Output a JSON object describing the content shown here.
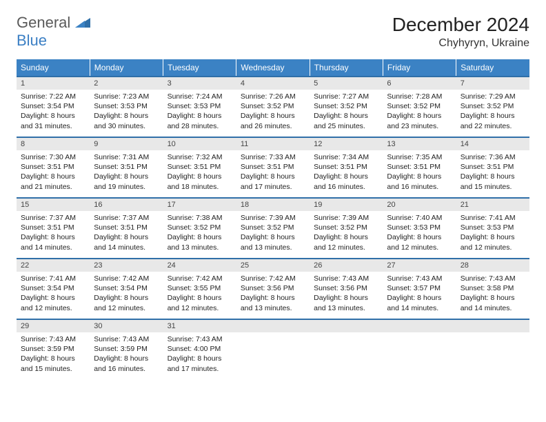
{
  "logo": {
    "general": "General",
    "blue": "Blue"
  },
  "title": "December 2024",
  "location": "Chyhyryn, Ukraine",
  "weekdays": [
    "Sunday",
    "Monday",
    "Tuesday",
    "Wednesday",
    "Thursday",
    "Friday",
    "Saturday"
  ],
  "colors": {
    "header_bg": "#3b82c4",
    "header_text": "#ffffff",
    "daynum_bg": "#e8e8e8",
    "row_divider": "#2f6fa8",
    "logo_gray": "#5a5a5a",
    "logo_blue": "#3b7fc4",
    "background": "#ffffff"
  },
  "days": [
    {
      "n": "1",
      "sunrise": "Sunrise: 7:22 AM",
      "sunset": "Sunset: 3:54 PM",
      "day": "Daylight: 8 hours and 31 minutes."
    },
    {
      "n": "2",
      "sunrise": "Sunrise: 7:23 AM",
      "sunset": "Sunset: 3:53 PM",
      "day": "Daylight: 8 hours and 30 minutes."
    },
    {
      "n": "3",
      "sunrise": "Sunrise: 7:24 AM",
      "sunset": "Sunset: 3:53 PM",
      "day": "Daylight: 8 hours and 28 minutes."
    },
    {
      "n": "4",
      "sunrise": "Sunrise: 7:26 AM",
      "sunset": "Sunset: 3:52 PM",
      "day": "Daylight: 8 hours and 26 minutes."
    },
    {
      "n": "5",
      "sunrise": "Sunrise: 7:27 AM",
      "sunset": "Sunset: 3:52 PM",
      "day": "Daylight: 8 hours and 25 minutes."
    },
    {
      "n": "6",
      "sunrise": "Sunrise: 7:28 AM",
      "sunset": "Sunset: 3:52 PM",
      "day": "Daylight: 8 hours and 23 minutes."
    },
    {
      "n": "7",
      "sunrise": "Sunrise: 7:29 AM",
      "sunset": "Sunset: 3:52 PM",
      "day": "Daylight: 8 hours and 22 minutes."
    },
    {
      "n": "8",
      "sunrise": "Sunrise: 7:30 AM",
      "sunset": "Sunset: 3:51 PM",
      "day": "Daylight: 8 hours and 21 minutes."
    },
    {
      "n": "9",
      "sunrise": "Sunrise: 7:31 AM",
      "sunset": "Sunset: 3:51 PM",
      "day": "Daylight: 8 hours and 19 minutes."
    },
    {
      "n": "10",
      "sunrise": "Sunrise: 7:32 AM",
      "sunset": "Sunset: 3:51 PM",
      "day": "Daylight: 8 hours and 18 minutes."
    },
    {
      "n": "11",
      "sunrise": "Sunrise: 7:33 AM",
      "sunset": "Sunset: 3:51 PM",
      "day": "Daylight: 8 hours and 17 minutes."
    },
    {
      "n": "12",
      "sunrise": "Sunrise: 7:34 AM",
      "sunset": "Sunset: 3:51 PM",
      "day": "Daylight: 8 hours and 16 minutes."
    },
    {
      "n": "13",
      "sunrise": "Sunrise: 7:35 AM",
      "sunset": "Sunset: 3:51 PM",
      "day": "Daylight: 8 hours and 16 minutes."
    },
    {
      "n": "14",
      "sunrise": "Sunrise: 7:36 AM",
      "sunset": "Sunset: 3:51 PM",
      "day": "Daylight: 8 hours and 15 minutes."
    },
    {
      "n": "15",
      "sunrise": "Sunrise: 7:37 AM",
      "sunset": "Sunset: 3:51 PM",
      "day": "Daylight: 8 hours and 14 minutes."
    },
    {
      "n": "16",
      "sunrise": "Sunrise: 7:37 AM",
      "sunset": "Sunset: 3:51 PM",
      "day": "Daylight: 8 hours and 14 minutes."
    },
    {
      "n": "17",
      "sunrise": "Sunrise: 7:38 AM",
      "sunset": "Sunset: 3:52 PM",
      "day": "Daylight: 8 hours and 13 minutes."
    },
    {
      "n": "18",
      "sunrise": "Sunrise: 7:39 AM",
      "sunset": "Sunset: 3:52 PM",
      "day": "Daylight: 8 hours and 13 minutes."
    },
    {
      "n": "19",
      "sunrise": "Sunrise: 7:39 AM",
      "sunset": "Sunset: 3:52 PM",
      "day": "Daylight: 8 hours and 12 minutes."
    },
    {
      "n": "20",
      "sunrise": "Sunrise: 7:40 AM",
      "sunset": "Sunset: 3:53 PM",
      "day": "Daylight: 8 hours and 12 minutes."
    },
    {
      "n": "21",
      "sunrise": "Sunrise: 7:41 AM",
      "sunset": "Sunset: 3:53 PM",
      "day": "Daylight: 8 hours and 12 minutes."
    },
    {
      "n": "22",
      "sunrise": "Sunrise: 7:41 AM",
      "sunset": "Sunset: 3:54 PM",
      "day": "Daylight: 8 hours and 12 minutes."
    },
    {
      "n": "23",
      "sunrise": "Sunrise: 7:42 AM",
      "sunset": "Sunset: 3:54 PM",
      "day": "Daylight: 8 hours and 12 minutes."
    },
    {
      "n": "24",
      "sunrise": "Sunrise: 7:42 AM",
      "sunset": "Sunset: 3:55 PM",
      "day": "Daylight: 8 hours and 12 minutes."
    },
    {
      "n": "25",
      "sunrise": "Sunrise: 7:42 AM",
      "sunset": "Sunset: 3:56 PM",
      "day": "Daylight: 8 hours and 13 minutes."
    },
    {
      "n": "26",
      "sunrise": "Sunrise: 7:43 AM",
      "sunset": "Sunset: 3:56 PM",
      "day": "Daylight: 8 hours and 13 minutes."
    },
    {
      "n": "27",
      "sunrise": "Sunrise: 7:43 AM",
      "sunset": "Sunset: 3:57 PM",
      "day": "Daylight: 8 hours and 14 minutes."
    },
    {
      "n": "28",
      "sunrise": "Sunrise: 7:43 AM",
      "sunset": "Sunset: 3:58 PM",
      "day": "Daylight: 8 hours and 14 minutes."
    },
    {
      "n": "29",
      "sunrise": "Sunrise: 7:43 AM",
      "sunset": "Sunset: 3:59 PM",
      "day": "Daylight: 8 hours and 15 minutes."
    },
    {
      "n": "30",
      "sunrise": "Sunrise: 7:43 AM",
      "sunset": "Sunset: 3:59 PM",
      "day": "Daylight: 8 hours and 16 minutes."
    },
    {
      "n": "31",
      "sunrise": "Sunrise: 7:43 AM",
      "sunset": "Sunset: 4:00 PM",
      "day": "Daylight: 8 hours and 17 minutes."
    }
  ]
}
